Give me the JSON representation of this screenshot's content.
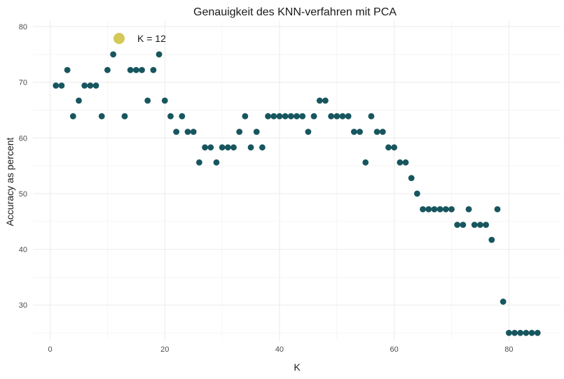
{
  "chart_data": {
    "type": "scatter",
    "title": "Genauigkeit des KNN-verfahren mit PCA",
    "xlabel": "K",
    "ylabel": "Accuracy as percent",
    "xlim": [
      -3,
      89
    ],
    "ylim": [
      23.5,
      81
    ],
    "x_ticks": [
      0,
      20,
      40,
      60,
      80
    ],
    "y_ticks": [
      30,
      40,
      50,
      60,
      70,
      80
    ],
    "x_tick_labels": [
      "0",
      "20",
      "40",
      "60",
      "80"
    ],
    "y_tick_labels": [
      "30",
      "40",
      "50",
      "60",
      "70",
      "80"
    ],
    "grid": true,
    "point_color": "#17565e",
    "highlight": {
      "x": 12,
      "y": 78.3,
      "label": "K = 12",
      "color": "#d4c857"
    },
    "series": [
      {
        "x": [
          1,
          2,
          3,
          4,
          5,
          6,
          7,
          8,
          9,
          10,
          11,
          13,
          14,
          15,
          16,
          17,
          18,
          19,
          20,
          21,
          22,
          23,
          24,
          25,
          26,
          27,
          28,
          29,
          30,
          31,
          32,
          33,
          34,
          35,
          36,
          37,
          38,
          39,
          40,
          41,
          42,
          43,
          44,
          45,
          46,
          47,
          48,
          49,
          50,
          51,
          52,
          53,
          54,
          55,
          56,
          57,
          58,
          59,
          60,
          61,
          62,
          63,
          64,
          65,
          66,
          67,
          68,
          69,
          70,
          71,
          72,
          73,
          74,
          75,
          76,
          77,
          78,
          79,
          80,
          81,
          82,
          83,
          84,
          85
        ],
        "y": [
          69.4,
          69.4,
          72.2,
          63.9,
          66.7,
          69.4,
          69.4,
          69.4,
          63.9,
          72.2,
          75.0,
          63.9,
          72.2,
          72.2,
          72.2,
          66.7,
          72.2,
          75.0,
          66.7,
          63.9,
          61.1,
          63.9,
          61.1,
          61.1,
          55.6,
          58.3,
          58.3,
          55.6,
          58.3,
          58.3,
          58.3,
          61.1,
          63.9,
          58.3,
          61.1,
          58.3,
          63.9,
          63.9,
          63.9,
          63.9,
          63.9,
          63.9,
          63.9,
          61.1,
          63.9,
          66.7,
          66.7,
          63.9,
          63.9,
          63.9,
          63.9,
          61.1,
          61.1,
          55.6,
          63.9,
          61.1,
          61.1,
          58.3,
          58.3,
          55.6,
          55.6,
          52.8,
          50.0,
          47.2,
          47.2,
          47.2,
          47.2,
          47.2,
          47.2,
          44.4,
          44.4,
          47.2,
          44.4,
          44.4,
          44.4,
          41.7,
          47.2,
          30.6,
          25.0,
          25.0,
          25.0,
          25.0,
          25.0,
          25.0
        ]
      }
    ]
  }
}
